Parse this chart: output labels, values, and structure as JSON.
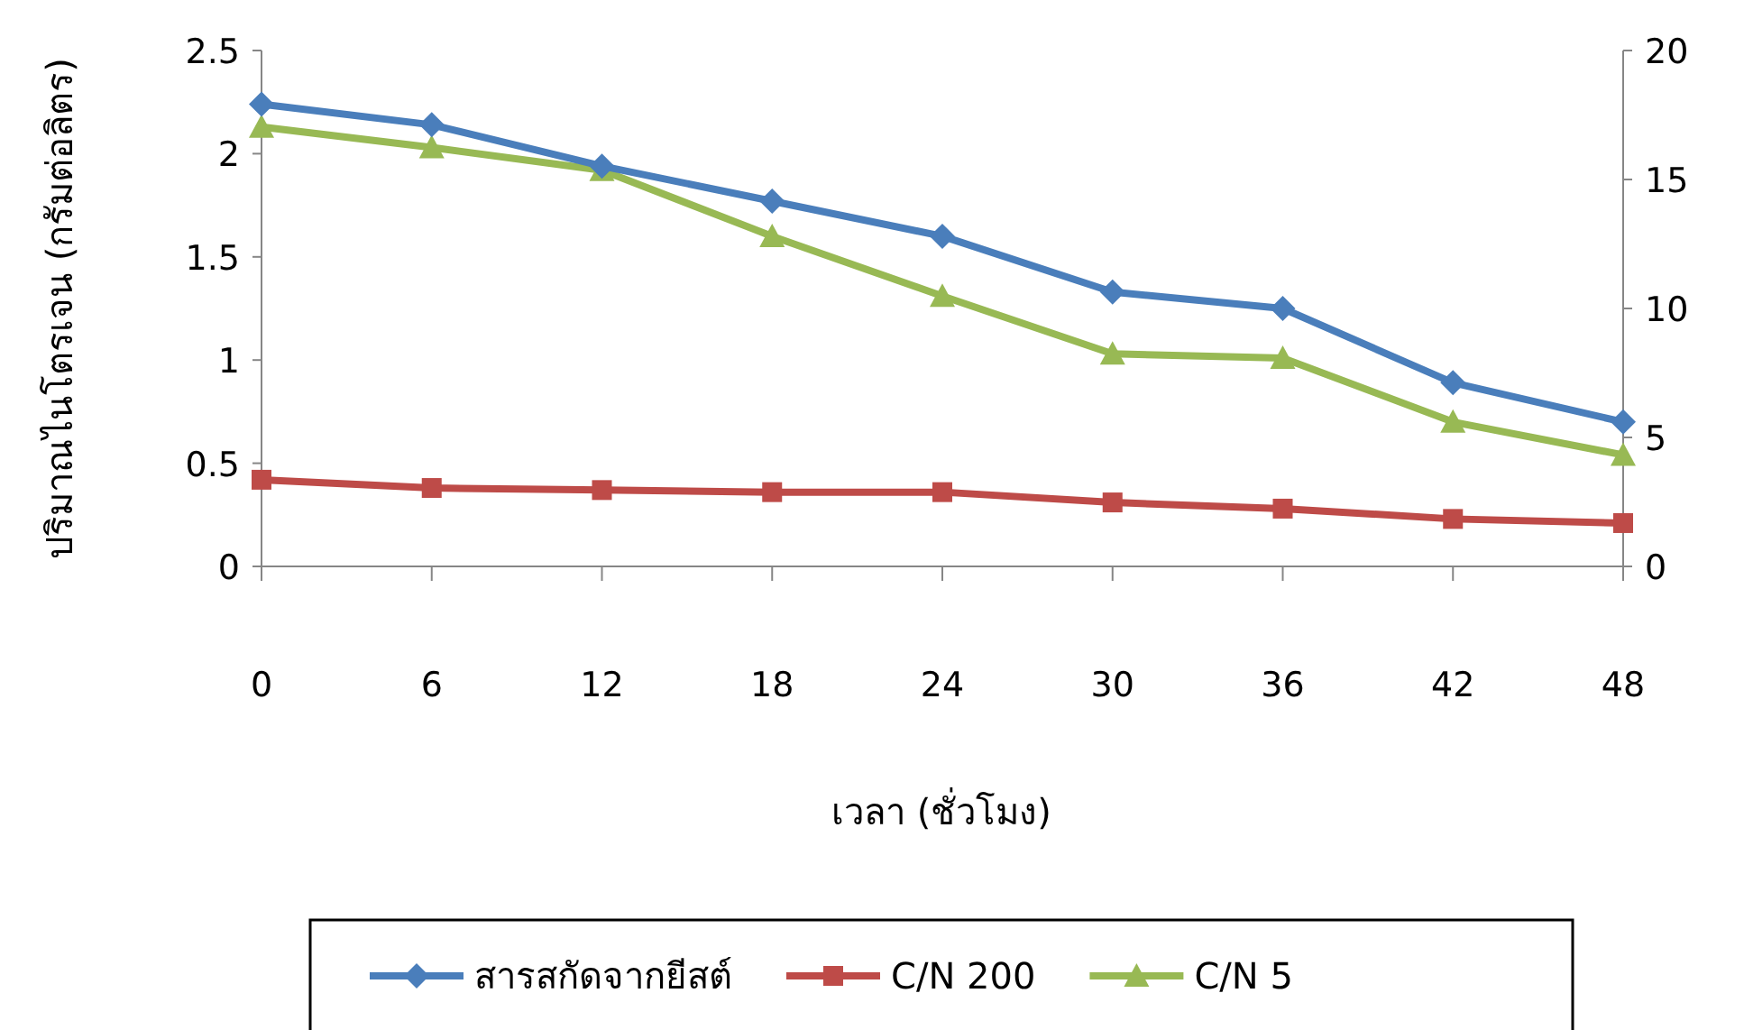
{
  "chart_data": {
    "type": "line",
    "xlabel": "เวลา (ชั่วโมง)",
    "ylabel": "ปริมาณไนโตรเจน (กรัมต่อลิตร)",
    "x": [
      0,
      6,
      12,
      18,
      24,
      30,
      36,
      42,
      48
    ],
    "xlim": [
      0,
      48
    ],
    "xticks": [
      0,
      6,
      12,
      18,
      24,
      30,
      36,
      42,
      48
    ],
    "ylim": [
      0,
      2.5
    ],
    "yticks": [
      0,
      0.5,
      1,
      1.5,
      2,
      2.5
    ],
    "y2lim": [
      0,
      20
    ],
    "y2ticks": [
      0,
      5,
      10,
      15,
      20
    ],
    "grid": false,
    "legend": "bottom",
    "line_style": "solid",
    "series": [
      {
        "name": "สารสกัดจากยีสต์",
        "color": "#4a7ebb",
        "marker": "diamond",
        "values": [
          2.24,
          2.14,
          1.94,
          1.77,
          1.6,
          1.33,
          1.25,
          0.89,
          0.7
        ]
      },
      {
        "name": "C/N 200",
        "color": "#be4b48",
        "marker": "square",
        "values": [
          0.42,
          0.38,
          0.37,
          0.36,
          0.36,
          0.31,
          0.28,
          0.23,
          0.21
        ]
      },
      {
        "name": "C/N 5",
        "color": "#98b954",
        "marker": "triangle",
        "values": [
          2.13,
          2.03,
          1.92,
          1.6,
          1.31,
          1.03,
          1.01,
          0.7,
          0.54
        ]
      }
    ]
  }
}
